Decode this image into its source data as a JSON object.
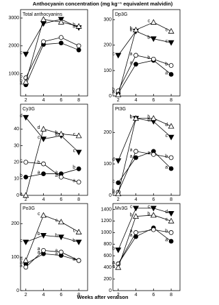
{
  "title": "Anthocyanin concentration (mg kg⁻¹ equivalent malvidin)",
  "xlabel": "Weeks after veraison",
  "chart_data": [
    {
      "type": "line",
      "title": "Total anthocyanins",
      "x": [
        2,
        4,
        6,
        8
      ],
      "xlim": [
        1.4,
        9
      ],
      "xticks": [
        2,
        4,
        6,
        8
      ],
      "ylim": [
        200,
        3300
      ],
      "yticks": [
        1000,
        2000,
        3000
      ],
      "series": [
        {
          "marker": "circle-filled",
          "color": "#000",
          "values": [
            600,
            2050,
            2100,
            1850
          ],
          "letters": [
            "a",
            null,
            null,
            null
          ]
        },
        {
          "marker": "circle-open",
          "color": "#000",
          "values": [
            850,
            2150,
            2300,
            2000
          ],
          "letters": [
            "b",
            null,
            null,
            null
          ]
        },
        {
          "marker": "triangle-down-filled",
          "color": "#000",
          "values": [
            1700,
            2800,
            2950,
            2650
          ],
          "letters": [
            "c",
            null,
            null,
            "a"
          ]
        },
        {
          "marker": "triangle-up-open",
          "color": "#000",
          "values": [
            700,
            2950,
            2850,
            2700
          ],
          "letters": [
            "b",
            null,
            null,
            "b"
          ]
        }
      ]
    },
    {
      "type": "line",
      "title": "Dp3G",
      "x": [
        2,
        4,
        6,
        8
      ],
      "xlim": [
        1.4,
        9
      ],
      "xticks": [
        2,
        4,
        6,
        8
      ],
      "ylim": [
        0,
        340
      ],
      "yticks": [
        0,
        100,
        200,
        300
      ],
      "series": [
        {
          "marker": "circle-filled",
          "color": "#000",
          "values": [
            10,
            125,
            140,
            85
          ],
          "letters": [
            "a",
            "a",
            null,
            "a"
          ]
        },
        {
          "marker": "circle-open",
          "color": "#000",
          "values": [
            20,
            160,
            145,
            120
          ],
          "letters": [
            "b",
            "a",
            "b",
            "b"
          ]
        },
        {
          "marker": "triangle-down-filled",
          "color": "#000",
          "values": [
            160,
            255,
            225,
            210
          ],
          "letters": [
            "c",
            "b",
            "b",
            "c"
          ]
        },
        {
          "marker": "triangle-up-open",
          "color": "#000",
          "values": [
            5,
            260,
            290,
            255
          ],
          "letters": [
            null,
            "b",
            "c",
            "c"
          ]
        }
      ]
    },
    {
      "type": "line",
      "title": "Cy3G",
      "x": [
        2,
        4,
        6,
        8
      ],
      "xlim": [
        1.4,
        9
      ],
      "xticks": [
        2,
        4,
        6,
        8
      ],
      "ylim": [
        0,
        55
      ],
      "yticks": [
        0,
        10,
        20,
        30,
        40
      ],
      "series": [
        {
          "marker": "circle-filled",
          "color": "#000",
          "values": [
            11,
            13,
            13,
            16
          ],
          "letters": [
            "b",
            "a",
            "a",
            "b"
          ]
        },
        {
          "marker": "circle-open",
          "color": "#000",
          "values": [
            20,
            19,
            11,
            8
          ],
          "letters": [
            "c",
            "b",
            "a",
            "a"
          ]
        },
        {
          "marker": "triangle-down-filled",
          "color": "#000",
          "values": [
            47,
            34,
            36,
            26
          ],
          "letters": [
            "d",
            "c",
            "b",
            "c"
          ]
        },
        {
          "marker": "triangle-up-open",
          "color": "#000",
          "values": [
            0,
            40,
            37,
            36
          ],
          "letters": [
            "a",
            "d",
            "b",
            "c"
          ]
        }
      ]
    },
    {
      "type": "line",
      "title": "Pt3G",
      "x": [
        2,
        4,
        6,
        8
      ],
      "xlim": [
        1.4,
        9
      ],
      "xticks": [
        2,
        4,
        6,
        8
      ],
      "ylim": [
        0,
        290
      ],
      "yticks": [
        0,
        100,
        200
      ],
      "series": [
        {
          "marker": "circle-filled",
          "color": "#000",
          "values": [
            40,
            120,
            140,
            85
          ],
          "letters": [
            "c",
            "a",
            null,
            "a"
          ]
        },
        {
          "marker": "circle-open",
          "color": "#000",
          "values": [
            10,
            140,
            130,
            120
          ],
          "letters": [
            "b",
            "a",
            "a",
            "b"
          ]
        },
        {
          "marker": "triangle-down-filled",
          "color": "#000",
          "values": [
            110,
            245,
            235,
            185
          ],
          "letters": [
            "d",
            "b",
            "b",
            "c"
          ]
        },
        {
          "marker": "triangle-up-open",
          "color": "#000",
          "values": [
            5,
            245,
            245,
            220
          ],
          "letters": [
            "a",
            "b",
            "b",
            "d"
          ]
        }
      ]
    },
    {
      "type": "line",
      "title": "Po3G",
      "x": [
        2,
        4,
        6,
        8
      ],
      "xlim": [
        1.4,
        9
      ],
      "xticks": [
        2,
        4,
        6,
        8
      ],
      "ylim": [
        0,
        260
      ],
      "yticks": [
        0,
        100,
        200
      ],
      "series": [
        {
          "marker": "circle-filled",
          "color": "#000",
          "values": [
            80,
            110,
            105,
            90
          ],
          "letters": [
            "a",
            "a",
            "a",
            "a"
          ]
        },
        {
          "marker": "circle-open",
          "color": "#000",
          "values": [
            70,
            120,
            115,
            90
          ],
          "letters": [
            "a",
            "a",
            "a",
            "a"
          ]
        },
        {
          "marker": "triangle-down-filled",
          "color": "#000",
          "values": [
            145,
            165,
            160,
            145
          ],
          "letters": [
            "c",
            "b",
            "b",
            "b"
          ]
        },
        {
          "marker": "triangle-up-open",
          "color": "#000",
          "values": [
            90,
            225,
            205,
            175
          ],
          "letters": [
            "b",
            "c",
            "c",
            "c"
          ]
        }
      ]
    },
    {
      "type": "line",
      "title": "Mv3G",
      "x": [
        2,
        4,
        6,
        8
      ],
      "xlim": [
        1.4,
        9
      ],
      "xticks": [
        2,
        4,
        6,
        8
      ],
      "ylim": [
        0,
        1500
      ],
      "yticks": [
        0,
        200,
        400,
        600,
        800,
        1000,
        1200,
        1400
      ],
      "series": [
        {
          "marker": "circle-filled",
          "color": "#000",
          "values": [
            460,
            930,
            1080,
            850
          ],
          "letters": [
            "a",
            "a",
            null,
            "a"
          ]
        },
        {
          "marker": "circle-open",
          "color": "#000",
          "values": [
            460,
            1000,
            1050,
            1000
          ],
          "letters": [
            "a",
            "a",
            null,
            "b"
          ]
        },
        {
          "marker": "triangle-down-filled",
          "color": "#000",
          "values": [
            700,
            1420,
            1420,
            1330
          ],
          "letters": [
            "b",
            "c",
            "c",
            "d"
          ]
        },
        {
          "marker": "triangle-up-open",
          "color": "#000",
          "values": [
            400,
            1280,
            1300,
            1200
          ],
          "letters": [
            "a",
            "b",
            "b",
            "c"
          ]
        }
      ]
    }
  ]
}
